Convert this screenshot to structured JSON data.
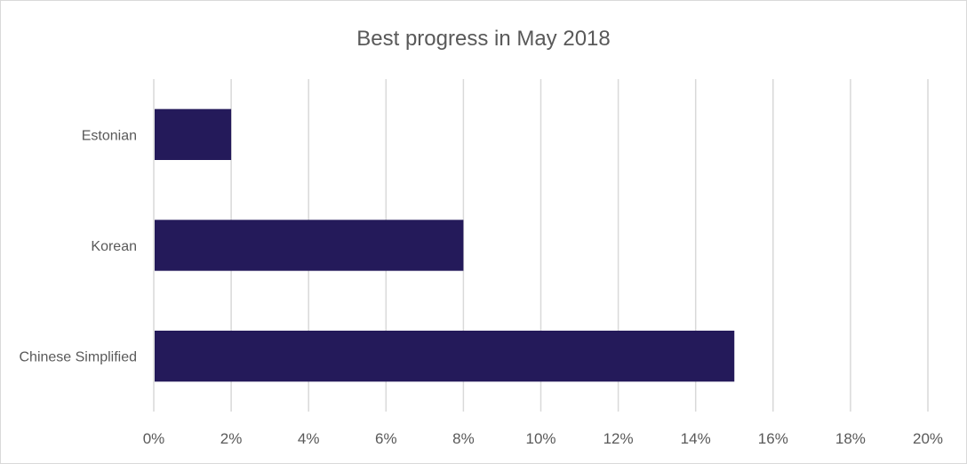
{
  "chart_data": {
    "type": "bar",
    "orientation": "horizontal",
    "title": "Best progress in May 2018",
    "xlabel": "",
    "ylabel": "",
    "categories": [
      "Estonian",
      "Korean",
      "Chinese Simplified"
    ],
    "values": [
      2,
      8,
      15
    ],
    "value_unit": "%",
    "xlim": [
      0,
      20
    ],
    "x_ticks": [
      0,
      2,
      4,
      6,
      8,
      10,
      12,
      14,
      16,
      18,
      20
    ],
    "x_tick_labels": [
      "0%",
      "2%",
      "4%",
      "6%",
      "8%",
      "10%",
      "12%",
      "14%",
      "16%",
      "18%",
      "20%"
    ],
    "grid": "vertical",
    "legend": "none",
    "colors": {
      "bar": "#241a5a",
      "grid": "#d9d9d9",
      "text": "#595959",
      "border": "#d9d9d9"
    }
  }
}
